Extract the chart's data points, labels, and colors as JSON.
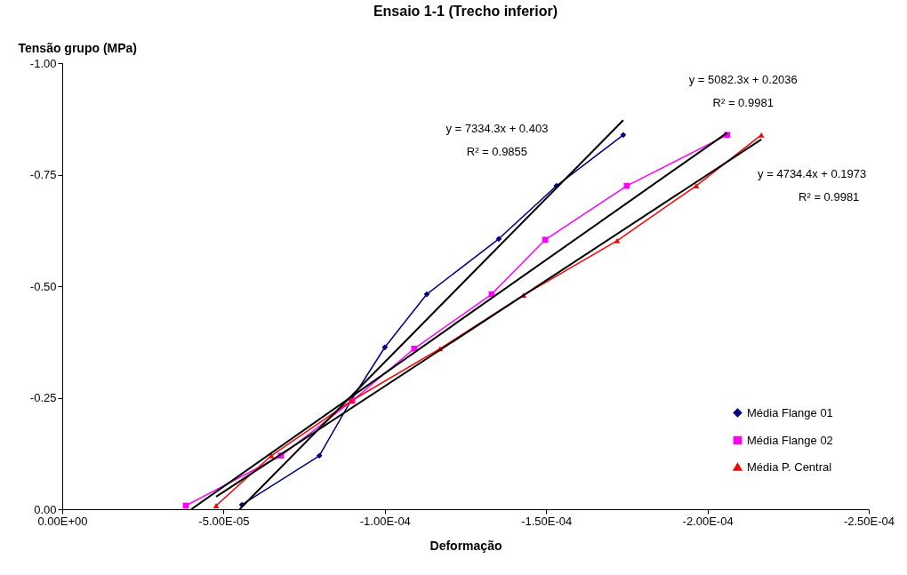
{
  "chart_data": {
    "type": "line",
    "title": "Ensaio 1-1 (Trecho inferior)",
    "xlabel": "Deformação",
    "ylabel": "Tensão grupo (MPa)",
    "xlim": [
      0,
      -0.00025
    ],
    "xticks": [
      {
        "value": 0,
        "label": "0.00E+00"
      },
      {
        "value": -5e-05,
        "label": "-5.00E-05"
      },
      {
        "value": -0.0001,
        "label": "-1.00E-04"
      },
      {
        "value": -0.00015,
        "label": "-1.50E-04"
      },
      {
        "value": -0.0002,
        "label": "-2.00E-04"
      },
      {
        "value": -0.00025,
        "label": "-2.50E-04"
      }
    ],
    "ylim": [
      0,
      -1
    ],
    "yticks": [
      {
        "value": 0,
        "label": "0.00"
      },
      -0.25,
      {
        "value": -0.5,
        "label": "-0.50"
      },
      -0.75,
      {
        "value": -1,
        "label": "-1.00"
      }
    ],
    "grid": false,
    "legend": "bottom right",
    "series": [
      {
        "name": "Média Flange 01",
        "color": "#000080",
        "marker": "diamond",
        "x": [
          -5.57e-05,
          -7.97e-05,
          -8.96e-05,
          -0.0001,
          -0.000113,
          -0.0001353,
          -0.0001532,
          -0.0001739
        ],
        "values": [
          -0.01,
          -0.12,
          -0.245,
          -0.363,
          -0.482,
          -0.606,
          -0.725,
          -0.839
        ]
      },
      {
        "name": "Média Flange 02",
        "color": "#ff00ff",
        "marker": "square",
        "x": [
          -3.83e-05,
          -6.78e-05,
          -8.99e-05,
          -0.0001091,
          -0.0001331,
          -0.0001497,
          -0.000175,
          -0.0002061
        ],
        "values": [
          -0.008,
          -0.12,
          -0.243,
          -0.36,
          -0.482,
          -0.604,
          -0.725,
          -0.839
        ]
      },
      {
        "name": "Média P. Central",
        "color": "#ff0000",
        "marker": "triangle",
        "x": [
          -4.77e-05,
          -6.48e-05,
          -8.96e-05,
          -0.0001171,
          -0.000143,
          -0.000172,
          -0.0001965,
          -0.0002167
        ],
        "values": [
          -0.008,
          -0.12,
          -0.243,
          -0.36,
          -0.48,
          -0.602,
          -0.725,
          -0.839
        ]
      },
      {
        "color": "#000000",
        "marker": "none",
        "x": [
          -5.5e-05,
          -0.0001739
        ],
        "values": [
          0,
          -0.872
        ]
      },
      {
        "color": "#000000",
        "marker": "none",
        "x": [
          -4e-05,
          -0.0002061
        ],
        "values": [
          0,
          -0.844
        ]
      },
      {
        "color": "#000000",
        "marker": "none",
        "x": [
          -4.77e-05,
          -0.0002167
        ],
        "values": [
          -0.028,
          -0.829
        ]
      }
    ],
    "annotations": [
      "y = 7334.3x + 0.403",
      "R² = 0.9855",
      "y = 5082.3x + 0.2036",
      "R² = 0.9981",
      "y = 4734.4x + 0.1973",
      "R² = 0.9981"
    ]
  }
}
